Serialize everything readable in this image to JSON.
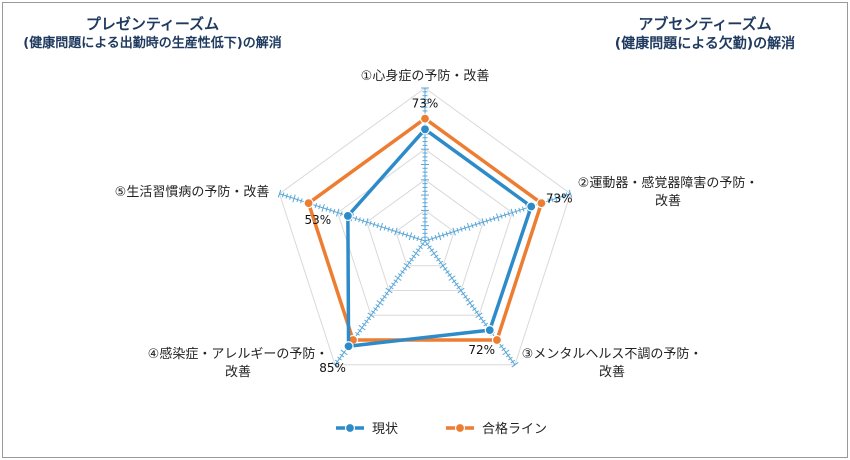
{
  "titles": {
    "left": {
      "line1": "プレゼンティーズム",
      "line2": "(健康問題による出勤時の生産性低下)の解消"
    },
    "right": {
      "line1": "アブセンティーズム",
      "line2": "(健康問題による欠勤)の解消"
    }
  },
  "colors": {
    "current": "#2e8bc9",
    "pass": "#ed7d31",
    "grid": "#d9d9d9",
    "axis": "#5aa7d8"
  },
  "chart_data": {
    "type": "radar",
    "categories": [
      [
        "①心身症の予防・改善"
      ],
      [
        "②運動器・感覚器障害の予防・",
        "改善"
      ],
      [
        "③メンタルヘルス不調の予防・",
        "改善"
      ],
      [
        "④感染症・アレルギーの予防・",
        "改善"
      ],
      [
        "⑤生活習慣病の予防・改善"
      ]
    ],
    "range": [
      0,
      100
    ],
    "rings": 5,
    "series": [
      {
        "name": "現状",
        "values": [
          73,
          73,
          72,
          85,
          53
        ],
        "labels": [
          "73%",
          "73%",
          "72%",
          "85%",
          "53%"
        ]
      },
      {
        "name": "合格ライン",
        "values": [
          80,
          80,
          80,
          80,
          80
        ]
      }
    ],
    "legend_position": "bottom"
  }
}
